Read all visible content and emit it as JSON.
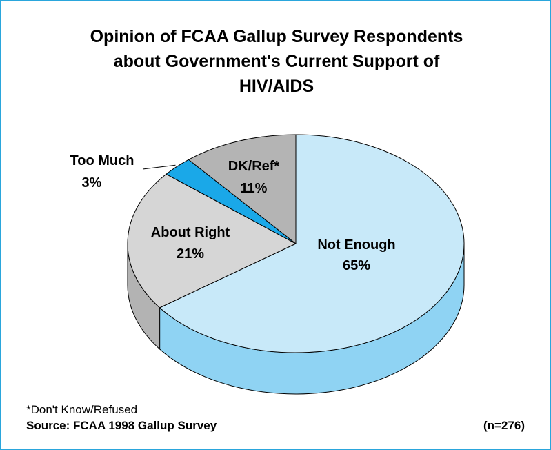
{
  "chart_data": {
    "type": "pie",
    "title": "Opinion of FCAA Gallup Survey Respondents about Government's Current Support of HIV/AIDS",
    "title_lines": [
      "Opinion of FCAA Gallup Survey Respondents",
      "about Government's Current Support of",
      "HIV/AIDS"
    ],
    "slices": [
      {
        "name": "Not Enough",
        "value": 65,
        "label": "65%",
        "top_color": "#c8e9f9",
        "side_color": "#8fd3f3"
      },
      {
        "name": "About Right",
        "value": 21,
        "label": "21%",
        "top_color": "#d6d6d6",
        "side_color": "#b3b3b3"
      },
      {
        "name": "Too Much",
        "value": 3,
        "label": "3%",
        "top_color": "#1aa8e8",
        "side_color": "#0f86c0"
      },
      {
        "name": "DK/Ref*",
        "value": 11,
        "label": "11%",
        "top_color": "#b4b4b4",
        "side_color": "#8f8f8f"
      }
    ],
    "style": "3d"
  },
  "footnote": "*Don't Know/Refused",
  "source": "Source: FCAA 1998 Gallup Survey",
  "sample_size": "(n=276)",
  "colors": {
    "frame": "#2aa6dc",
    "outline": "#000000"
  }
}
